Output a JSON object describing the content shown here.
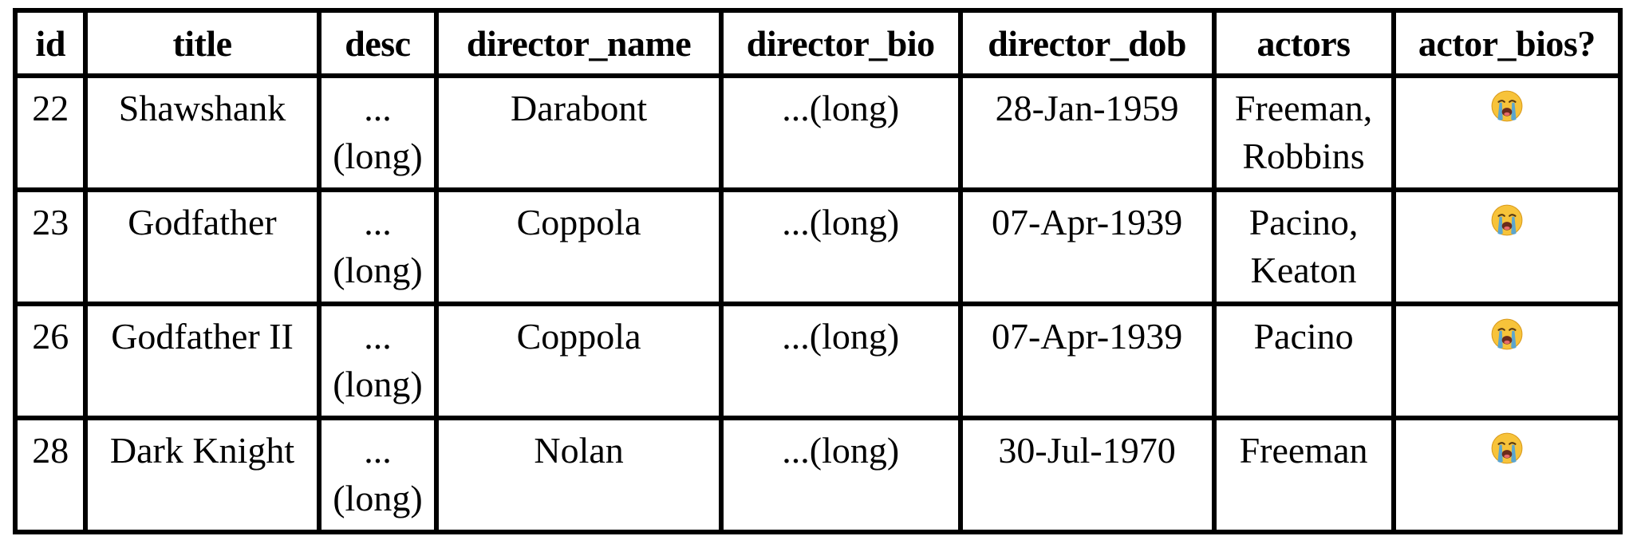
{
  "table": {
    "columns": [
      "id",
      "title",
      "desc",
      "director_name",
      "director_bio",
      "director_dob",
      "actors",
      "actor_bios?"
    ],
    "rows": [
      {
        "id": "22",
        "title": "Shawshank",
        "desc_line1": "...",
        "desc_line2": "(long)",
        "director_name": "Darabont",
        "director_bio": "...(long)",
        "director_dob": "28-Jan-1959",
        "actors_line1": "Freeman,",
        "actors_line2": "Robbins",
        "actor_bios_icon": "loudly-crying-face-icon"
      },
      {
        "id": "23",
        "title": "Godfather",
        "desc_line1": "...",
        "desc_line2": "(long)",
        "director_name": "Coppola",
        "director_bio": "...(long)",
        "director_dob": "07-Apr-1939",
        "actors_line1": "Pacino,",
        "actors_line2": "Keaton",
        "actor_bios_icon": "loudly-crying-face-icon"
      },
      {
        "id": "26",
        "title": "Godfather II",
        "desc_line1": "...",
        "desc_line2": "(long)",
        "director_name": "Coppola",
        "director_bio": "...(long)",
        "director_dob": "07-Apr-1939",
        "actors_line1": "Pacino",
        "actors_line2": "",
        "actor_bios_icon": "loudly-crying-face-icon"
      },
      {
        "id": "28",
        "title": "Dark Knight",
        "desc_line1": "...",
        "desc_line2": "(long)",
        "director_name": "Nolan",
        "director_bio": "...(long)",
        "director_dob": "30-Jul-1970",
        "actors_line1": "Freeman",
        "actors_line2": "",
        "actor_bios_icon": "loudly-crying-face-icon"
      }
    ]
  },
  "colors": {
    "border": "#000000",
    "background": "#ffffff",
    "emoji_face": "#f7c33a",
    "emoji_tears": "#4aa3df"
  }
}
